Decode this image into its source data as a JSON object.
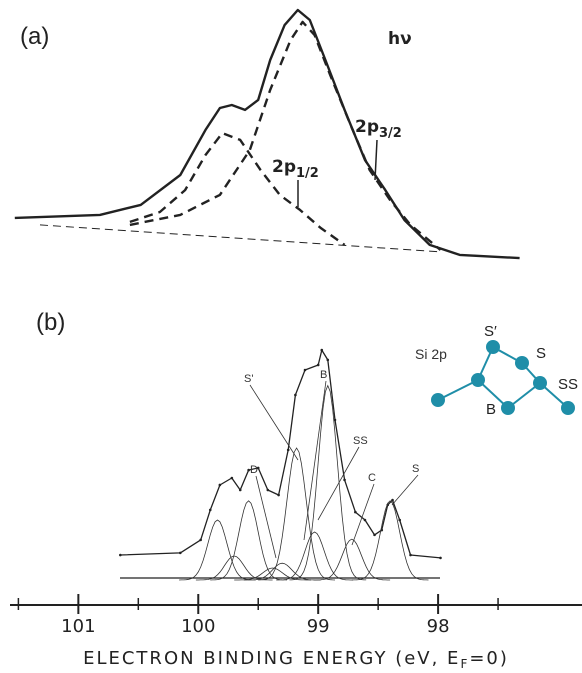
{
  "chart_data": {
    "type": "line",
    "xlim": [
      101.57,
      96.8
    ],
    "xticks": [
      101,
      100,
      99,
      98
    ],
    "minor_xticks": [
      101.5,
      100.5,
      99.5,
      98.5,
      97.5
    ],
    "xlabel": {
      "text": "ELECTRON BINDING ENERGY (eV, E",
      "sub": "F",
      "tail": "=0)"
    },
    "color": "#222222",
    "panels": [
      {
        "label": "(a)",
        "ylim": [
          0,
          100
        ],
        "annotations": [
          {
            "text": "hν"
          },
          {
            "text": "2p",
            "sub": "1/2"
          },
          {
            "text": "2p",
            "sub": "3/2"
          }
        ],
        "series": [
          {
            "style": "solid",
            "x": [
              101.53,
              100.82,
              100.48,
              100.15,
              99.94,
              99.82,
              99.72,
              99.61,
              99.5,
              99.4,
              99.28,
              99.17,
              99.07,
              98.94,
              98.78,
              98.61,
              98.44,
              98.28,
              98.07,
              97.82,
              97.32
            ],
            "values": [
              23.0,
              24.1,
              27.8,
              38.9,
              55.6,
              63.7,
              64.8,
              63.0,
              66.7,
              81.5,
              94.4,
              100,
              96.3,
              81.5,
              63.0,
              44.4,
              33.3,
              22.2,
              13.0,
              9.3,
              8.1
            ]
          },
          {
            "style": "dashed",
            "x": [
              100.57,
              100.32,
              100.11,
              99.94,
              99.8,
              99.65,
              99.48,
              99.32,
              99.15,
              98.98,
              98.78
            ],
            "values": [
              21.5,
              25.2,
              33.3,
              46.3,
              54.4,
              51.9,
              40.7,
              31.5,
              25.9,
              19.3,
              13.0
            ]
          },
          {
            "style": "dashed",
            "x": [
              100.57,
              100.15,
              99.82,
              99.57,
              99.4,
              99.23,
              99.13,
              99.03,
              98.9,
              98.73,
              98.57,
              98.4,
              98.23,
              97.98
            ],
            "values": [
              20.4,
              24.1,
              31.5,
              48.1,
              70.4,
              88.9,
              95.6,
              90.7,
              75.9,
              57.4,
              40.7,
              29.6,
              20.4,
              11.1
            ]
          },
          {
            "style": "thin-dashed",
            "x": [
              101.32,
              97.98
            ],
            "values": [
              20.4,
              10.4
            ]
          }
        ]
      },
      {
        "label": "(b)",
        "ylim": [
          0,
          100
        ],
        "annotations": [
          {
            "text": "S'"
          },
          {
            "text": "B"
          },
          {
            "text": "SS"
          },
          {
            "text": "D"
          },
          {
            "text": "C"
          },
          {
            "text": "S"
          }
        ],
        "series": [
          {
            "style": "dotted",
            "x": [
              100.65,
              100.15,
              99.98,
              99.9,
              99.82,
              99.72,
              99.65,
              99.58,
              99.5,
              99.42,
              99.33,
              99.25,
              99.19,
              99.11,
              99.0,
              98.97,
              98.92,
              98.86,
              98.78,
              98.69,
              98.61,
              98.53,
              98.47,
              98.42,
              98.38,
              98.32,
              98.23,
              97.98
            ],
            "values": [
              10.4,
              11.3,
              16.7,
              29.2,
              39.6,
              42.5,
              37.5,
              45.8,
              46.7,
              37.5,
              35.4,
              54.2,
              77.1,
              87.5,
              89.6,
              95.8,
              91.7,
              66.7,
              41.7,
              28.3,
              25.0,
              18.8,
              20.8,
              31.3,
              33.3,
              25.0,
              10.4,
              9.2
            ]
          }
        ],
        "components": [
          {
            "center": 99.84,
            "height": 25,
            "sigma": 0.08
          },
          {
            "center": 99.7,
            "height": 10,
            "sigma": 0.08
          },
          {
            "center": 99.58,
            "height": 33,
            "sigma": 0.08
          },
          {
            "center": 99.38,
            "height": 5,
            "sigma": 0.08
          },
          {
            "center": 99.3,
            "height": 7,
            "sigma": 0.08
          },
          {
            "center": 99.18,
            "height": 55,
            "sigma": 0.08
          },
          {
            "center": 99.03,
            "height": 20,
            "sigma": 0.08
          },
          {
            "center": 98.92,
            "height": 81,
            "sigma": 0.08
          },
          {
            "center": 98.72,
            "height": 17,
            "sigma": 0.08
          },
          {
            "center": 98.4,
            "height": 33,
            "sigma": 0.08
          }
        ],
        "inset": {
          "title": "Si 2p",
          "color": "#1f8ea8",
          "labels": [
            "S′",
            "S",
            "SS",
            "B"
          ]
        }
      }
    ]
  }
}
